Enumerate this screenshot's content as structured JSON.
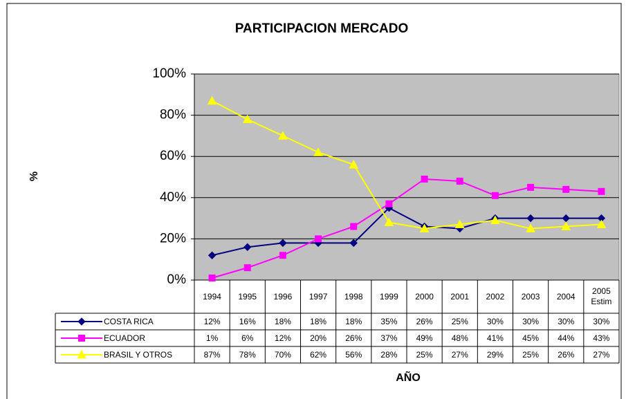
{
  "chart_data": {
    "type": "line",
    "title": "PARTICIPACION MERCADO",
    "x_label": "AÑO",
    "y_label": "%",
    "categories": [
      "1994",
      "1995",
      "1996",
      "1997",
      "1998",
      "1999",
      "2000",
      "2001",
      "2002",
      "2003",
      "2004",
      "2005 Estim"
    ],
    "series": [
      {
        "name": "COSTA RICA",
        "color": "#000080",
        "marker": "diamond",
        "values": [
          12,
          16,
          18,
          18,
          18,
          35,
          26,
          25,
          30,
          30,
          30,
          30
        ],
        "value_labels": [
          "12%",
          "16%",
          "18%",
          "18%",
          "18%",
          "35%",
          "26%",
          "25%",
          "30%",
          "30%",
          "30%",
          "30%"
        ]
      },
      {
        "name": "ECUADOR",
        "color": "#ff00ff",
        "marker": "square",
        "values": [
          1,
          6,
          12,
          20,
          26,
          37,
          49,
          48,
          41,
          45,
          44,
          43
        ],
        "value_labels": [
          "1%",
          "6%",
          "12%",
          "20%",
          "26%",
          "37%",
          "49%",
          "48%",
          "41%",
          "45%",
          "44%",
          "43%"
        ]
      },
      {
        "name": "BRASIL Y OTROS",
        "color": "#ffff00",
        "marker": "triangle",
        "values": [
          87,
          78,
          70,
          62,
          56,
          28,
          25,
          27,
          29,
          25,
          26,
          27
        ],
        "value_labels": [
          "87%",
          "78%",
          "70%",
          "62%",
          "56%",
          "28%",
          "25%",
          "27%",
          "29%",
          "25%",
          "26%",
          "27%"
        ]
      }
    ],
    "ylim": [
      0,
      100
    ],
    "yticks": [
      {
        "value": 0,
        "label": "0%"
      },
      {
        "value": 20,
        "label": "20%"
      },
      {
        "value": 40,
        "label": "40%"
      },
      {
        "value": 60,
        "label": "60%"
      },
      {
        "value": 80,
        "label": "80%"
      },
      {
        "value": 100,
        "label": "100%"
      }
    ],
    "grid": true,
    "plot_background": "#c0c0c0"
  }
}
